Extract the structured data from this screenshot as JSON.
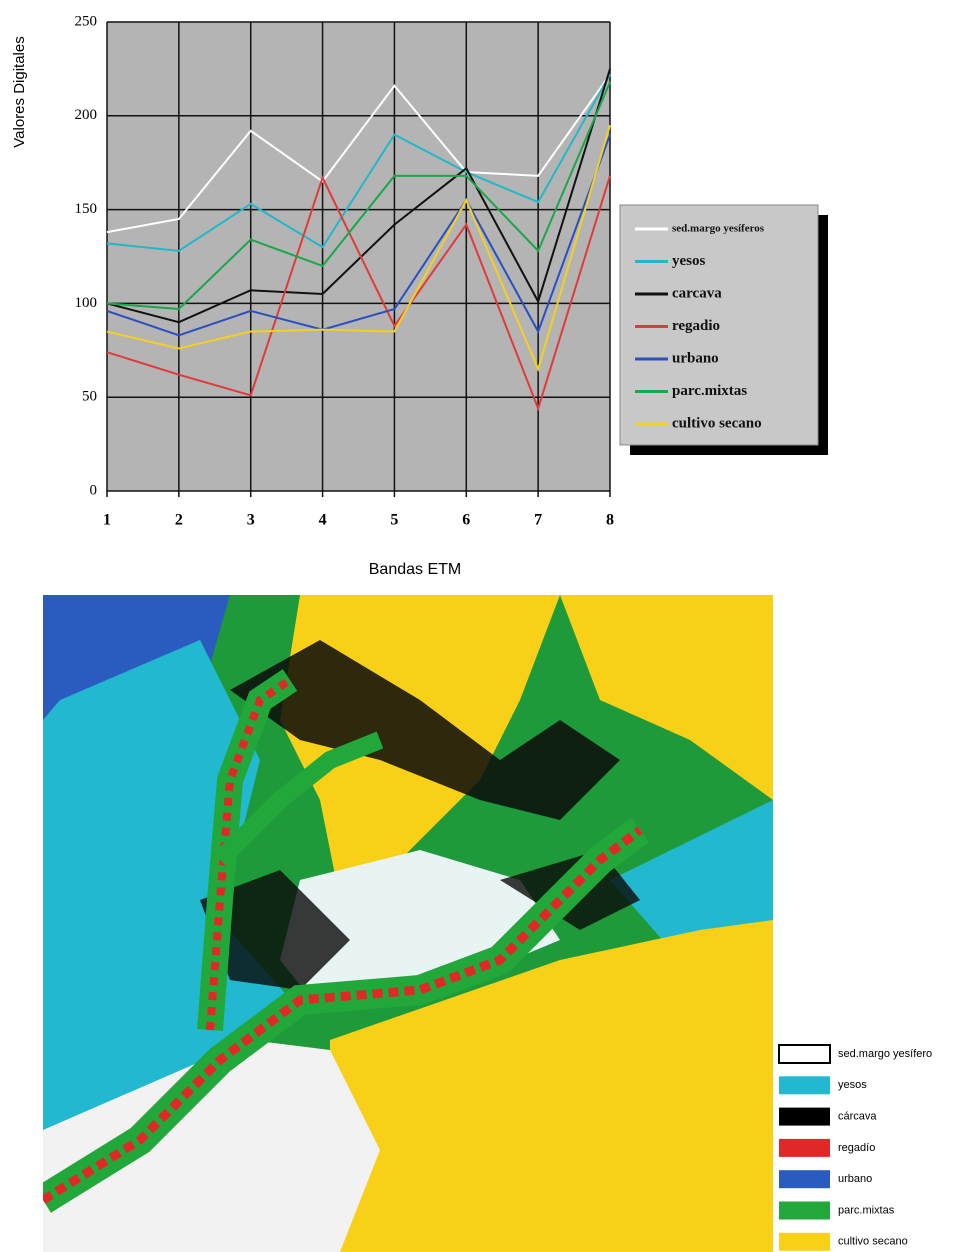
{
  "chart_data": {
    "type": "line",
    "y_label": "Valores Digitales",
    "x_label": "Bandas ETM",
    "x": [
      1,
      2,
      3,
      4,
      5,
      6,
      7,
      8
    ],
    "xlim": [
      1,
      8
    ],
    "xticks": [
      1,
      2,
      3,
      4,
      5,
      6,
      7,
      8
    ],
    "ylim": [
      0,
      250
    ],
    "yticks": [
      0,
      50,
      100,
      150,
      200,
      250
    ],
    "grid": true,
    "legend": "right",
    "series": [
      {
        "name": "sed.margo yesíferos",
        "color": "#ffffff",
        "values": [
          138,
          145,
          192,
          165,
          216,
          170,
          168,
          222
        ]
      },
      {
        "name": "yesos",
        "color": "#22b8c8",
        "values": [
          132,
          128,
          153,
          130,
          190,
          170,
          154,
          222
        ]
      },
      {
        "name": "carcava",
        "color": "#111111",
        "values": [
          100,
          90,
          107,
          105,
          142,
          172,
          101,
          225
        ]
      },
      {
        "name": "regadio",
        "color": "#e23a3a",
        "values": [
          74,
          62,
          51,
          167,
          88,
          142,
          44,
          168
        ]
      },
      {
        "name": "urbano",
        "color": "#2a4fc0",
        "values": [
          96,
          83,
          96,
          86,
          97,
          155,
          85,
          190
        ]
      },
      {
        "name": "parc.mixtas",
        "color": "#18a84a",
        "values": [
          100,
          97,
          134,
          120,
          168,
          168,
          128,
          218
        ]
      },
      {
        "name": "cultivo secano",
        "color": "#f4d020",
        "values": [
          85,
          76,
          85,
          86,
          85,
          155,
          65,
          195
        ]
      }
    ]
  },
  "map": {
    "legend": [
      {
        "label": "sed.margo yesífero",
        "color": "#ffffff"
      },
      {
        "label": "yesos",
        "color": "#22b8d0"
      },
      {
        "label": "cárcava",
        "color": "#000000"
      },
      {
        "label": "regadío",
        "color": "#e02828"
      },
      {
        "label": "urbano",
        "color": "#2a5cc0"
      },
      {
        "label": "parc.mixtas",
        "color": "#22a83a"
      },
      {
        "label": "cultivo secano",
        "color": "#f8d018"
      }
    ]
  }
}
